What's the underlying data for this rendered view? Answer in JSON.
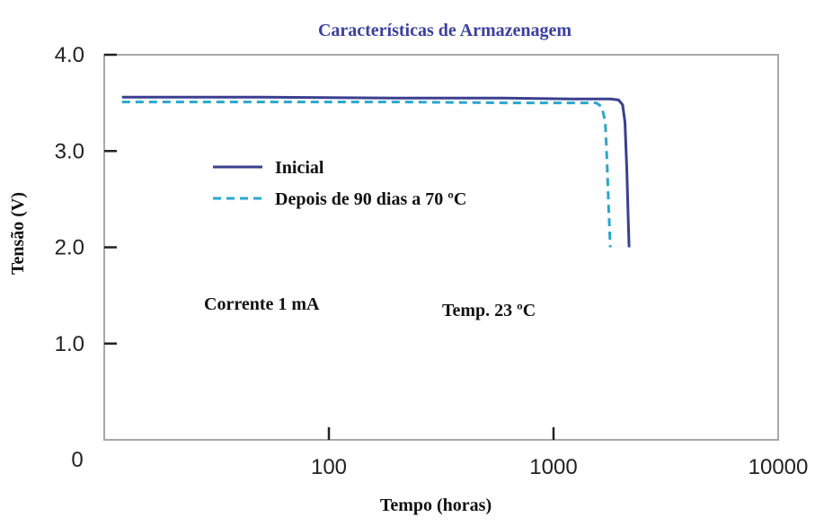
{
  "chart_data": {
    "type": "line",
    "title": "Características de Armazenagem",
    "xlabel": "Tempo (horas)",
    "ylabel": "Tensão (V)",
    "x_scale": "log",
    "x_origin_label": "0",
    "xlim": [
      10,
      10000
    ],
    "ylim": [
      0,
      4.0
    ],
    "x_ticks": [
      100,
      1000,
      10000
    ],
    "x_tick_labels": [
      "100",
      "1000",
      "10000"
    ],
    "y_ticks": [
      1.0,
      2.0,
      3.0,
      4.0
    ],
    "y_tick_labels": [
      "1.0",
      "2.0",
      "3.0",
      "4.0"
    ],
    "grid": false,
    "legend_position": "upper-left",
    "series": [
      {
        "name": "Inicial",
        "style": "solid",
        "color": "#3b3f8f",
        "x": [
          12,
          50,
          200,
          600,
          1200,
          1800,
          1950,
          2030,
          2080,
          2120,
          2150,
          2170
        ],
        "y": [
          3.56,
          3.56,
          3.55,
          3.55,
          3.54,
          3.54,
          3.53,
          3.48,
          3.3,
          2.8,
          2.3,
          2.0
        ]
      },
      {
        "name": "Depois de 90 dias a 70 ºC",
        "style": "dashed",
        "color": "#2aa6cc",
        "x": [
          12,
          50,
          200,
          600,
          1200,
          1550,
          1640,
          1700,
          1730,
          1760,
          1790
        ],
        "y": [
          3.51,
          3.51,
          3.51,
          3.5,
          3.5,
          3.5,
          3.46,
          3.3,
          2.9,
          2.4,
          2.0
        ]
      }
    ],
    "annotations": [
      {
        "text": "Corrente 1 mA",
        "x": 40,
        "y": 0.9
      },
      {
        "text": "Temp. 23 ºC",
        "x": 400,
        "y": 0.85
      }
    ]
  }
}
